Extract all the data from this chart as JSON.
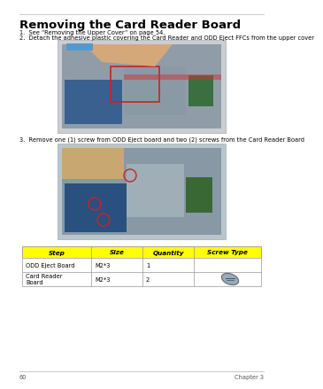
{
  "page_title": "Removing the Card Reader Board",
  "steps": [
    "1.  See “Removing the Upper Cover” on page 54.",
    "2.  Detach the adhesive plastic covering the Card Reader and ODD Eject FFCs from the upper cover",
    "3.  Remove one (1) screw from ODD Eject board and two (2) screws from the Card Reader Board"
  ],
  "table_headers": [
    "Step",
    "Size",
    "Quantity",
    "Screw Type"
  ],
  "table_rows": [
    [
      "ODD Eject Board",
      "M2*3",
      "1",
      ""
    ],
    [
      "Card Reader\nBoard",
      "M2*3",
      "2",
      "screw"
    ]
  ],
  "header_bg": "#FFFF00",
  "table_border": "#999999",
  "page_number": "60",
  "chapter": "Chapter 3",
  "img1_bg": "#B8C8D0",
  "img2_bg": "#B0C0C8",
  "title_fontsize": 9.5,
  "body_fontsize": 4.8,
  "table_header_fontsize": 5.2,
  "table_body_fontsize": 4.8
}
